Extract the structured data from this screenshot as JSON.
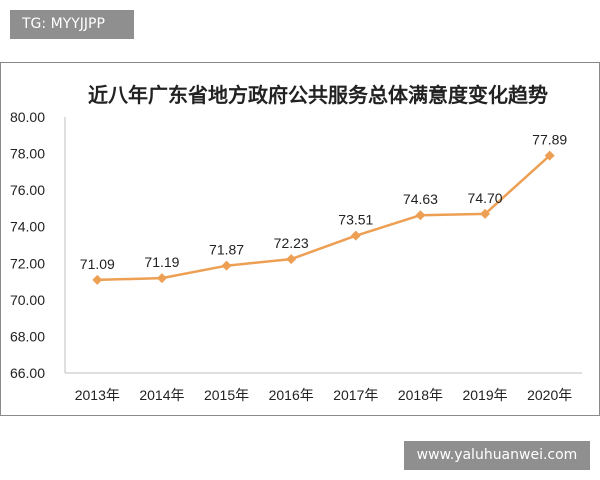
{
  "watermark_top": "TG: MYYJJPP",
  "watermark_bottom": "www.yaluhuanwei.com",
  "chart_data": {
    "type": "line",
    "title": "近八年广东省地方政府公共服务总体满意度变化趋势",
    "categories": [
      "2013年",
      "2014年",
      "2015年",
      "2016年",
      "2017年",
      "2018年",
      "2019年",
      "2020年"
    ],
    "values": [
      71.09,
      71.19,
      71.87,
      72.23,
      73.51,
      74.63,
      74.7,
      77.89
    ],
    "data_labels": [
      "71.09",
      "71.19",
      "71.87",
      "72.23",
      "73.51",
      "74.63",
      "74.70",
      "77.89"
    ],
    "yticks": [
      "66.00",
      "68.00",
      "70.00",
      "72.00",
      "74.00",
      "76.00",
      "78.00",
      "80.00"
    ],
    "ylim": [
      66,
      80
    ],
    "grid": false,
    "legend": "none",
    "line_color": "#ED9F53",
    "marker_color": "#ED9F53",
    "axis_color": "#BFBFBF"
  }
}
